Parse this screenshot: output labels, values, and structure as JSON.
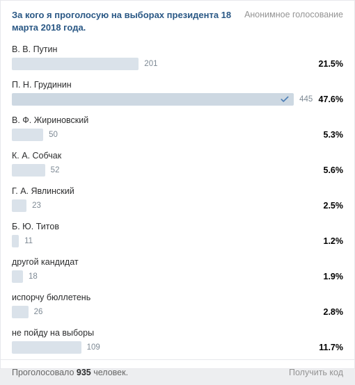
{
  "poll": {
    "title": "За кого я проголосую на выборах президента 18 марта 2018 года.",
    "anonymous_label": "Анонимное голосование",
    "bar_colors": {
      "default": "#dae2ea",
      "selected": "#cdd8e2"
    },
    "check_color": "#5181b8",
    "max_bar_percent": 96,
    "options": [
      {
        "label": "В. В. Путин",
        "count": 201,
        "percent": "21.5%",
        "bar_pct": 43.2,
        "selected": false
      },
      {
        "label": "П. Н. Грудинин",
        "count": 445,
        "percent": "47.6%",
        "bar_pct": 96,
        "selected": true
      },
      {
        "label": "В. Ф. Жириновский",
        "count": 50,
        "percent": "5.3%",
        "bar_pct": 10.7,
        "selected": false
      },
      {
        "label": "К. А. Собчак",
        "count": 52,
        "percent": "5.6%",
        "bar_pct": 11.3,
        "selected": false
      },
      {
        "label": "Г. А. Явлинский",
        "count": 23,
        "percent": "2.5%",
        "bar_pct": 5.0,
        "selected": false
      },
      {
        "label": "Б. Ю. Титов",
        "count": 11,
        "percent": "1.2%",
        "bar_pct": 2.4,
        "selected": false
      },
      {
        "label": "другой кандидат",
        "count": 18,
        "percent": "1.9%",
        "bar_pct": 3.8,
        "selected": false
      },
      {
        "label": "испорчу бюллетень",
        "count": 26,
        "percent": "2.8%",
        "bar_pct": 5.6,
        "selected": false
      },
      {
        "label": "не пойду на выборы",
        "count": 109,
        "percent": "11.7%",
        "bar_pct": 23.6,
        "selected": false
      }
    ],
    "footer": {
      "voted_prefix": "Проголосовало ",
      "voted_count": "935",
      "voted_suffix": " человек.",
      "get_code": "Получить код"
    }
  }
}
